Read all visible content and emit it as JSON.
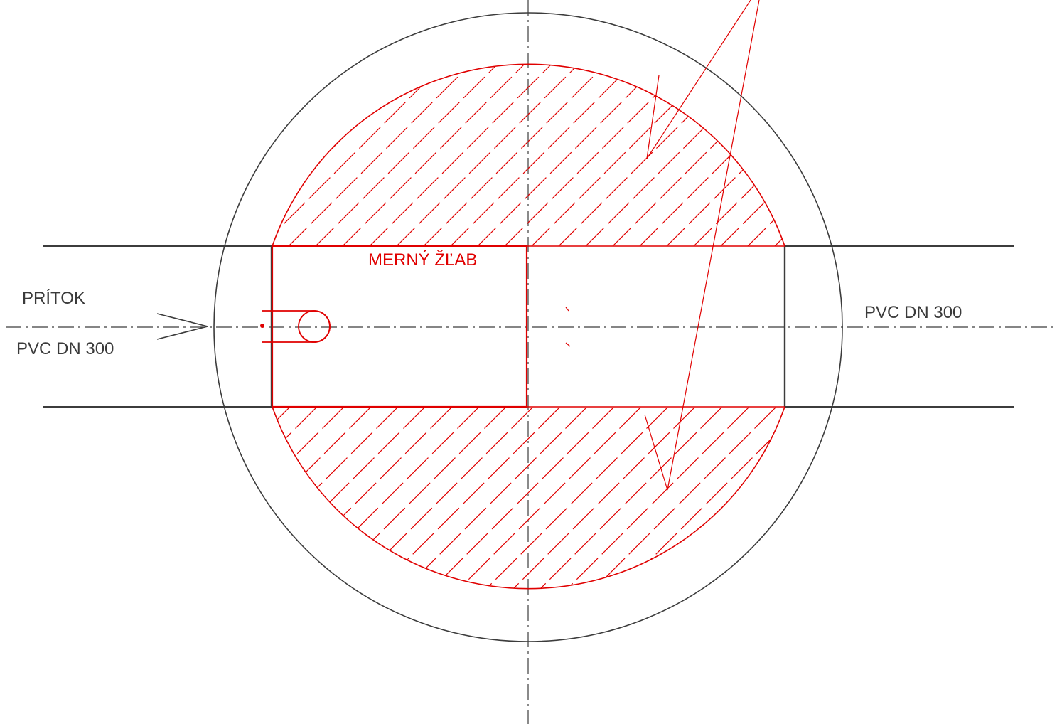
{
  "labels": {
    "inflow": "PRÍTOK",
    "inlet_pipe": "PVC DN 300",
    "outlet_pipe": "PVC DN 300",
    "flume": "MERNÝ ŽĽAB"
  },
  "colors": {
    "linework": "#3c3c3c",
    "highlight": "#e00000",
    "label_text": "#3a3a3a",
    "background": "#ffffff"
  }
}
